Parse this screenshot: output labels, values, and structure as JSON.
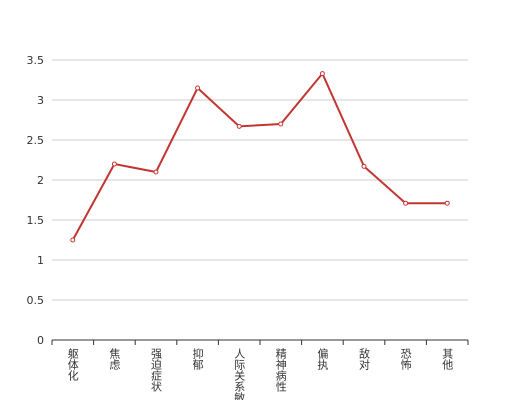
{
  "chart_data": {
    "type": "line",
    "categories": [
      "躯体化",
      "焦虑",
      "强迫症状",
      "抑郁",
      "人际关系敏感",
      "精神病性",
      "偏执",
      "敌对",
      "恐怖",
      "其他"
    ],
    "values": [
      1.25,
      2.2,
      2.1,
      3.15,
      2.67,
      2.7,
      3.33,
      2.17,
      1.71,
      1.71
    ],
    "color": "#c23531",
    "ylim": [
      0,
      3.5
    ],
    "yticks": [
      0,
      0.5,
      1,
      1.5,
      2,
      2.5,
      3,
      3.5
    ],
    "grid": true
  }
}
